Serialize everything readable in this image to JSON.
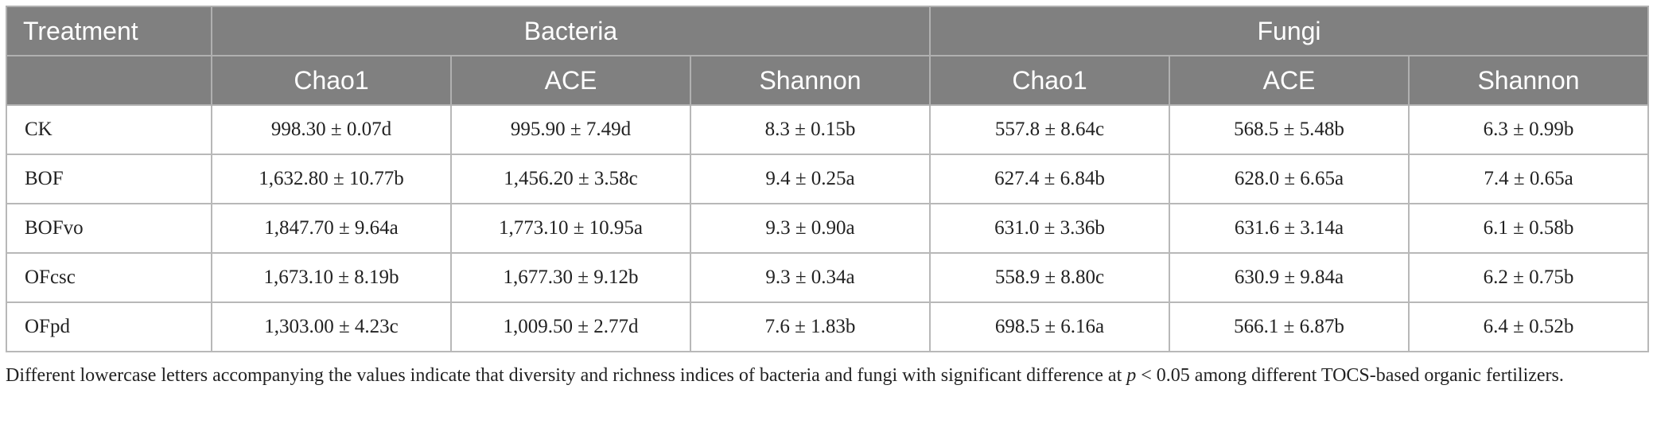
{
  "table": {
    "group_headers": [
      "Treatment",
      "Bacteria",
      "Fungi"
    ],
    "columns": [
      "Chao1",
      "ACE",
      "Shannon",
      "Chao1",
      "ACE",
      "Shannon"
    ],
    "rows": [
      [
        "CK",
        "998.30 ± 0.07d",
        "995.90 ± 7.49d",
        "8.3 ± 0.15b",
        "557.8 ± 8.64c",
        "568.5 ± 5.48b",
        "6.3 ± 0.99b"
      ],
      [
        "BOF",
        "1,632.80 ± 10.77b",
        "1,456.20 ± 3.58c",
        "9.4 ± 0.25a",
        "627.4 ± 6.84b",
        "628.0 ± 6.65a",
        "7.4 ± 0.65a"
      ],
      [
        "BOFvo",
        "1,847.70 ± 9.64a",
        "1,773.10 ± 10.95a",
        "9.3 ± 0.90a",
        "631.0 ± 3.36b",
        "631.6 ± 3.14a",
        "6.1 ± 0.58b"
      ],
      [
        "OFcsc",
        "1,673.10 ± 8.19b",
        "1,677.30 ± 9.12b",
        "9.3 ± 0.34a",
        "558.9 ± 8.80c",
        "630.9 ± 9.84a",
        "6.2 ± 0.75b"
      ],
      [
        "OFpd",
        "1,303.00 ± 4.23c",
        "1,009.50 ± 2.77d",
        "7.6 ± 1.83b",
        "698.5 ± 6.16a",
        "566.1 ± 6.87b",
        "6.4 ± 0.52b"
      ]
    ]
  },
  "footnote": [
    "Different lowercase letters accompanying the values indicate that diversity and richness indices of bacteria and fungi with significant difference at ",
    "p",
    " < 0.05 among different TOCS-based organic fertilizers."
  ]
}
